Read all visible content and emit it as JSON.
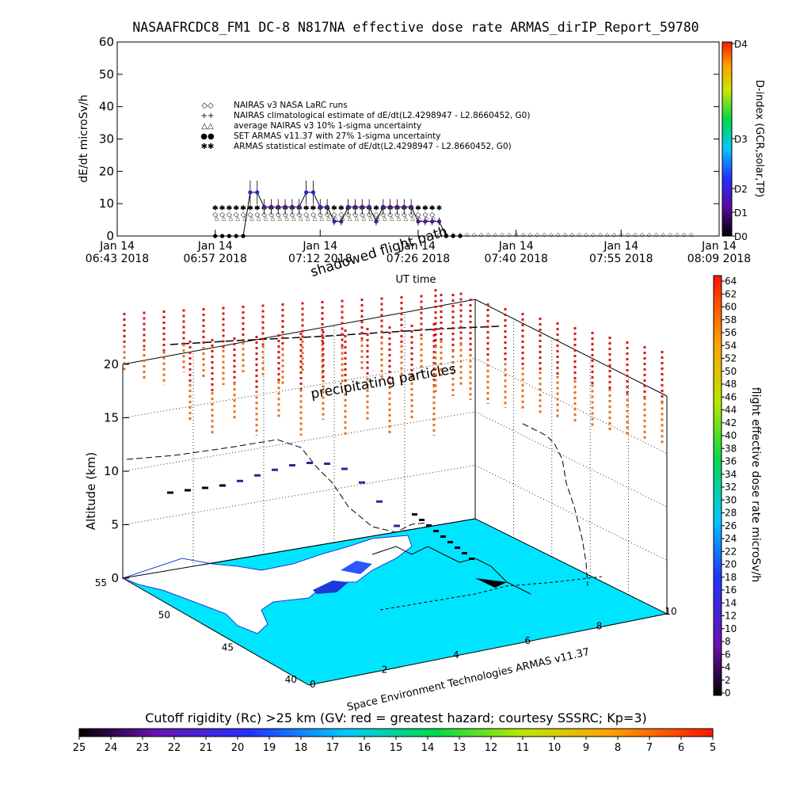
{
  "header": {
    "title": "NASAAFRCDC8_FM1 DC-8    N817NA effective dose rate ARMAS_dirIP_Report_59780"
  },
  "chart_data": [
    {
      "type": "line",
      "id": "dose-rate-timeseries",
      "xlabel": "UT time",
      "ylabel": "dE/dt microSv/h",
      "ylim": [
        0,
        60
      ],
      "yticks": [
        0,
        10,
        20,
        30,
        40,
        50,
        60
      ],
      "xtick_labels": [
        [
          "Jan 14",
          "06:43 2018"
        ],
        [
          "Jan 14",
          "06:57 2018"
        ],
        [
          "Jan 14",
          "07:12 2018"
        ],
        [
          "Jan 14",
          "07:26 2018"
        ],
        [
          "Jan 14",
          "07:40 2018"
        ],
        [
          "Jan 14",
          "07:55 2018"
        ],
        [
          "Jan 14",
          "08:09 2018"
        ]
      ],
      "grid": false,
      "legend_placement": "upper-left inside",
      "legend": [
        {
          "symbol": "◇◇",
          "label": "NAIRAS v3 NASA LaRC runs"
        },
        {
          "symbol": "++",
          "label": "NAIRAS climatological estimate of dE/dt(L2.4298947 - L2.8660452, G0)"
        },
        {
          "symbol": "△△",
          "label": "average NAIRAS v3 10% 1-sigma uncertainty"
        },
        {
          "symbol": "●●",
          "label": "SET ARMAS v11.37 with 27% 1-sigma uncertainty",
          "color": "#1a2bd6"
        },
        {
          "symbol": "✱✱",
          "label": "ARMAS statistical estimate of dE/dt(L2.4298947 - L2.8660452, G0)"
        }
      ],
      "series": [
        {
          "name": "SET ARMAS v11.37 with 27% 1-sigma uncertainty",
          "x_minutes_after_0643": [
            14,
            15,
            16,
            17,
            18,
            19,
            20,
            21,
            22,
            23,
            24,
            25,
            26,
            27,
            28,
            29,
            30,
            31,
            32,
            33,
            34,
            35,
            36,
            37,
            38,
            39,
            40,
            41,
            42,
            43,
            44,
            45,
            46,
            47,
            48,
            49
          ],
          "values": [
            0,
            0,
            0,
            0,
            0,
            13.5,
            13.5,
            9,
            9,
            9,
            9,
            9,
            9,
            13.5,
            13.5,
            9,
            9,
            4.5,
            4.5,
            9,
            9,
            9,
            9,
            4.5,
            9,
            9,
            9,
            9,
            9,
            4.5,
            4.5,
            4.5,
            4.5,
            0,
            0,
            0
          ]
        },
        {
          "name": "NAIRAS v3 NASA LaRC runs",
          "value": 7,
          "range_minutes_after_0643": [
            14,
            45
          ]
        },
        {
          "name": "ARMAS statistical estimate of dE/dt(L2.4298947 - L2.8660452, G0)",
          "value": 9,
          "range_minutes_after_0643": [
            14,
            46
          ]
        }
      ],
      "right_axis": {
        "label": "D-index (GCR,solar,TP)",
        "ticks": [
          "D0",
          "D1",
          "D2",
          "D3",
          "D4"
        ]
      }
    },
    {
      "type": "scatter",
      "id": "flight-path-3d",
      "zlabel": "Altitude (km)",
      "zticks": [
        0,
        5,
        10,
        15,
        20
      ],
      "zlim": [
        0,
        20
      ],
      "x_ticks": [
        "0",
        "2",
        "4",
        "6",
        "8",
        "10"
      ],
      "y_ticks": [
        "40",
        "45",
        "50",
        "55"
      ],
      "annotations": [
        "shadowed flight path",
        "precipitating particles"
      ],
      "flight_altitude_km": [
        8,
        8,
        8,
        8,
        8.2,
        8.5,
        8.8,
        9,
        9,
        8.7,
        8,
        6.5,
        4.5,
        2
      ],
      "credit": "Space Environment Technologies ARMAS v11.37",
      "dose_colorbar": {
        "label": "flight effective dose rate microSv/h",
        "min": 0,
        "max": 64,
        "ticks": [
          0,
          2,
          4,
          6,
          8,
          10,
          12,
          14,
          16,
          18,
          20,
          22,
          24,
          26,
          28,
          30,
          32,
          34,
          36,
          38,
          40,
          42,
          44,
          46,
          48,
          50,
          52,
          54,
          56,
          58,
          60,
          62,
          64
        ]
      }
    }
  ],
  "cutoff_bar": {
    "title": "Cutoff rigidity (Rc) >25 km (GV: red = greatest hazard; courtesy SSSRC; Kp=3)",
    "ticks": [
      "25",
      "24",
      "23",
      "22",
      "21",
      "20",
      "19",
      "18",
      "17",
      "16",
      "15",
      "14",
      "13",
      "12",
      "11",
      "10",
      "9",
      "8",
      "7",
      "6",
      "5"
    ]
  },
  "colors": {
    "background": "#ffffff",
    "dose_series": "#1a2bd6",
    "map_ocean": "#00e5ff",
    "map_land": "#ffffff",
    "precip_red": "#d31a1a",
    "precip_orange": "#e0701e"
  }
}
